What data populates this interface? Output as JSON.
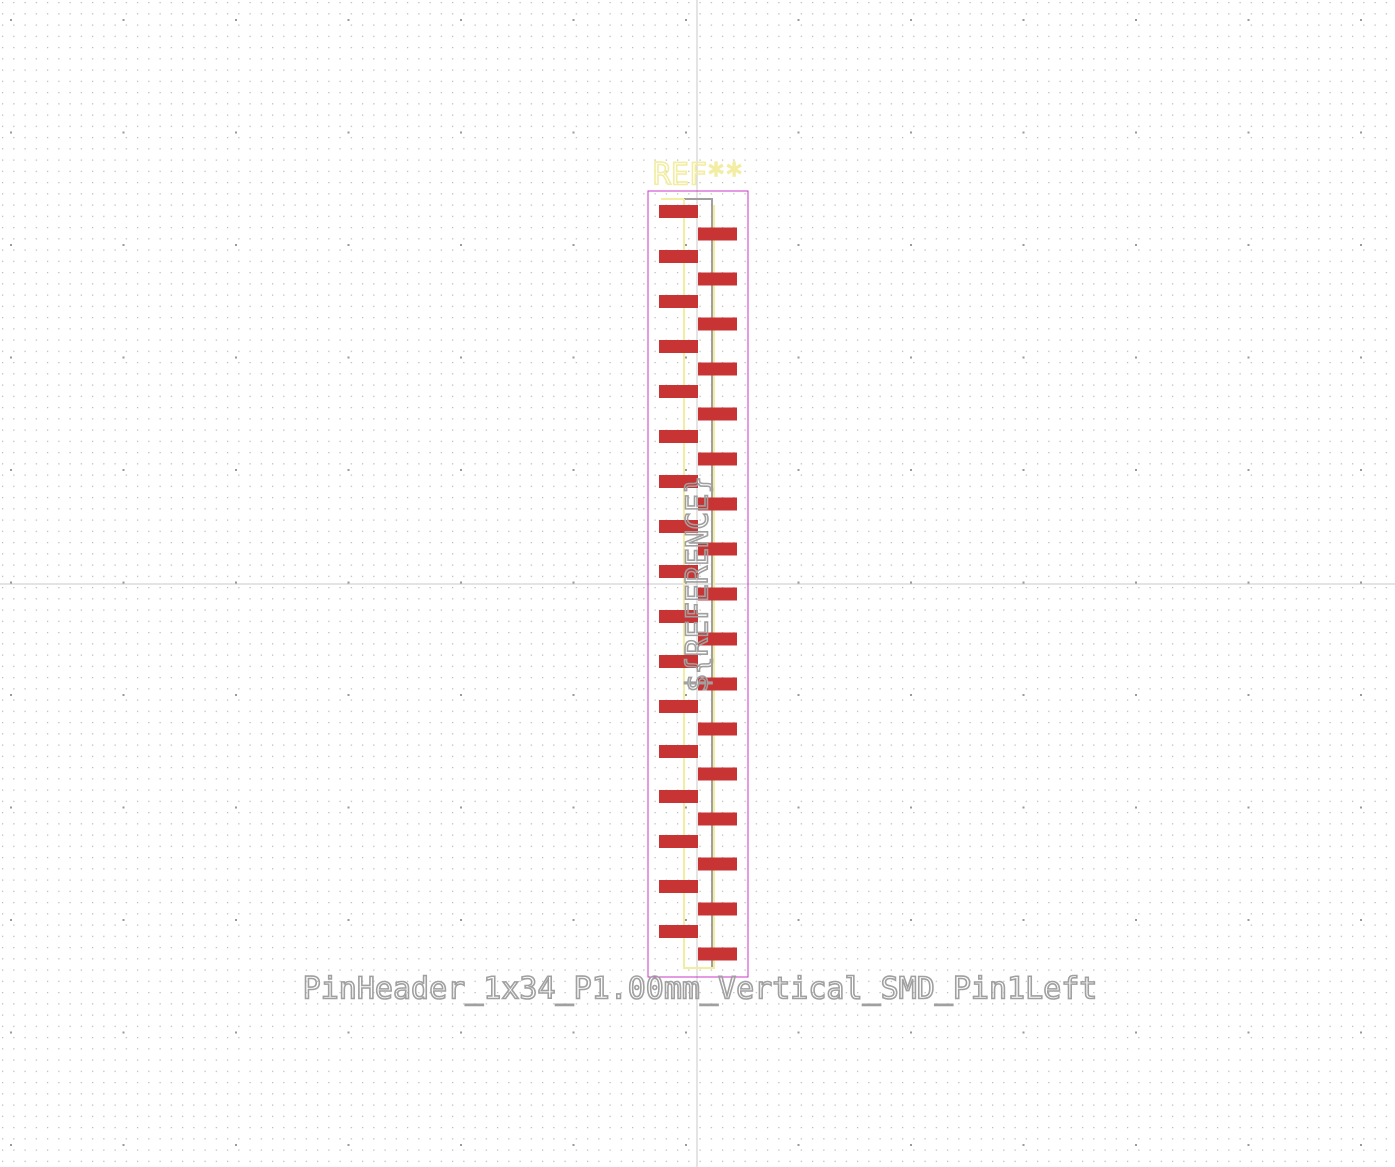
{
  "footprint": {
    "reference": "REF**",
    "value": "PinHeader_1x34_P1.00mm_Vertical_SMD_Pin1Left",
    "fab_reference": "${REFERENCE}",
    "pin_count": 34,
    "pitch": "1.00mm"
  },
  "colors": {
    "background": "#ffffff",
    "grid_dot": "#b4b4b4",
    "axis": "#c8c8c8",
    "pad": "#c83434",
    "silkscreen": "#f2eda1",
    "courtyard": "#c837c8",
    "fab": "#a0a0a0"
  }
}
